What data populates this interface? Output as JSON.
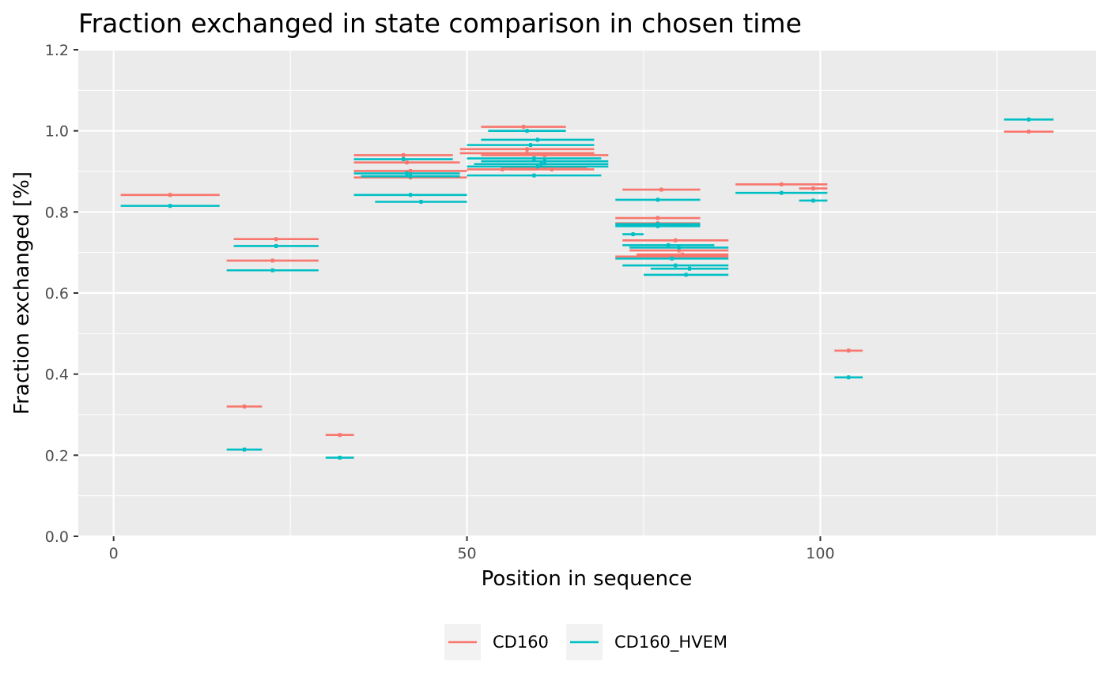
{
  "chart_data": {
    "type": "scatter",
    "title": "Fraction exchanged in state comparison in chosen time",
    "xlabel": "Position in sequence",
    "ylabel": "Fraction exchanged [%]",
    "xlim": [
      -5,
      139
    ],
    "ylim": [
      0,
      1.2
    ],
    "x_ticks": [
      0,
      50,
      100
    ],
    "y_ticks": [
      0.0,
      0.2,
      0.4,
      0.6,
      0.8,
      1.0,
      1.2
    ],
    "y_tick_labels": [
      "0.0",
      "0.2",
      "0.4",
      "0.6",
      "0.8",
      "1.0",
      "1.2"
    ],
    "grid": true,
    "legend_position": "bottom",
    "series": [
      {
        "name": "CD160",
        "color": "#F8766D",
        "segments": [
          {
            "start": 1,
            "end": 15,
            "y": 0.842
          },
          {
            "start": 17,
            "end": 29,
            "y": 0.733
          },
          {
            "start": 16,
            "end": 29,
            "y": 0.68
          },
          {
            "start": 16,
            "end": 21,
            "y": 0.32
          },
          {
            "start": 30,
            "end": 34,
            "y": 0.25
          },
          {
            "start": 34,
            "end": 48,
            "y": 0.94
          },
          {
            "start": 34,
            "end": 49,
            "y": 0.922
          },
          {
            "start": 34,
            "end": 50,
            "y": 0.901
          },
          {
            "start": 34,
            "end": 50,
            "y": 0.885
          },
          {
            "start": 50,
            "end": 60,
            "y": 0.905
          },
          {
            "start": 52,
            "end": 64,
            "y": 1.01
          },
          {
            "start": 49,
            "end": 68,
            "y": 0.955
          },
          {
            "start": 49,
            "end": 68,
            "y": 0.945
          },
          {
            "start": 52,
            "end": 70,
            "y": 0.94
          },
          {
            "start": 55,
            "end": 67,
            "y": 0.91
          },
          {
            "start": 56,
            "end": 68,
            "y": 0.905
          },
          {
            "start": 72,
            "end": 83,
            "y": 0.855
          },
          {
            "start": 71,
            "end": 83,
            "y": 0.785
          },
          {
            "start": 71,
            "end": 83,
            "y": 0.772
          },
          {
            "start": 72,
            "end": 87,
            "y": 0.73
          },
          {
            "start": 73,
            "end": 87,
            "y": 0.705
          },
          {
            "start": 74,
            "end": 87,
            "y": 0.695
          },
          {
            "start": 71,
            "end": 87,
            "y": 0.69
          },
          {
            "start": 88,
            "end": 101,
            "y": 0.868
          },
          {
            "start": 97,
            "end": 101,
            "y": 0.858
          },
          {
            "start": 102,
            "end": 106,
            "y": 0.458
          },
          {
            "start": 126,
            "end": 133,
            "y": 0.998
          }
        ]
      },
      {
        "name": "CD160_HVEM",
        "color": "#00BFC4",
        "segments": [
          {
            "start": 1,
            "end": 15,
            "y": 0.815
          },
          {
            "start": 17,
            "end": 29,
            "y": 0.716
          },
          {
            "start": 16,
            "end": 29,
            "y": 0.656
          },
          {
            "start": 16,
            "end": 21,
            "y": 0.214
          },
          {
            "start": 30,
            "end": 34,
            "y": 0.194
          },
          {
            "start": 34,
            "end": 48,
            "y": 0.93
          },
          {
            "start": 34,
            "end": 49,
            "y": 0.895
          },
          {
            "start": 35,
            "end": 49,
            "y": 0.888
          },
          {
            "start": 34,
            "end": 50,
            "y": 0.842
          },
          {
            "start": 37,
            "end": 50,
            "y": 0.825
          },
          {
            "start": 50,
            "end": 68,
            "y": 0.965
          },
          {
            "start": 52,
            "end": 68,
            "y": 0.978
          },
          {
            "start": 53,
            "end": 64,
            "y": 1.0
          },
          {
            "start": 50,
            "end": 69,
            "y": 0.932
          },
          {
            "start": 52,
            "end": 70,
            "y": 0.925
          },
          {
            "start": 51,
            "end": 70,
            "y": 0.918
          },
          {
            "start": 50,
            "end": 70,
            "y": 0.912
          },
          {
            "start": 50,
            "end": 69,
            "y": 0.89
          },
          {
            "start": 71,
            "end": 83,
            "y": 0.83
          },
          {
            "start": 71,
            "end": 83,
            "y": 0.77
          },
          {
            "start": 71,
            "end": 83,
            "y": 0.765
          },
          {
            "start": 72,
            "end": 75,
            "y": 0.745
          },
          {
            "start": 72,
            "end": 85,
            "y": 0.718
          },
          {
            "start": 73,
            "end": 87,
            "y": 0.712
          },
          {
            "start": 71,
            "end": 87,
            "y": 0.685
          },
          {
            "start": 72,
            "end": 87,
            "y": 0.668
          },
          {
            "start": 76,
            "end": 87,
            "y": 0.66
          },
          {
            "start": 75,
            "end": 87,
            "y": 0.645
          },
          {
            "start": 88,
            "end": 101,
            "y": 0.847
          },
          {
            "start": 97,
            "end": 101,
            "y": 0.828
          },
          {
            "start": 102,
            "end": 106,
            "y": 0.392
          },
          {
            "start": 126,
            "end": 133,
            "y": 1.028
          }
        ]
      }
    ]
  }
}
